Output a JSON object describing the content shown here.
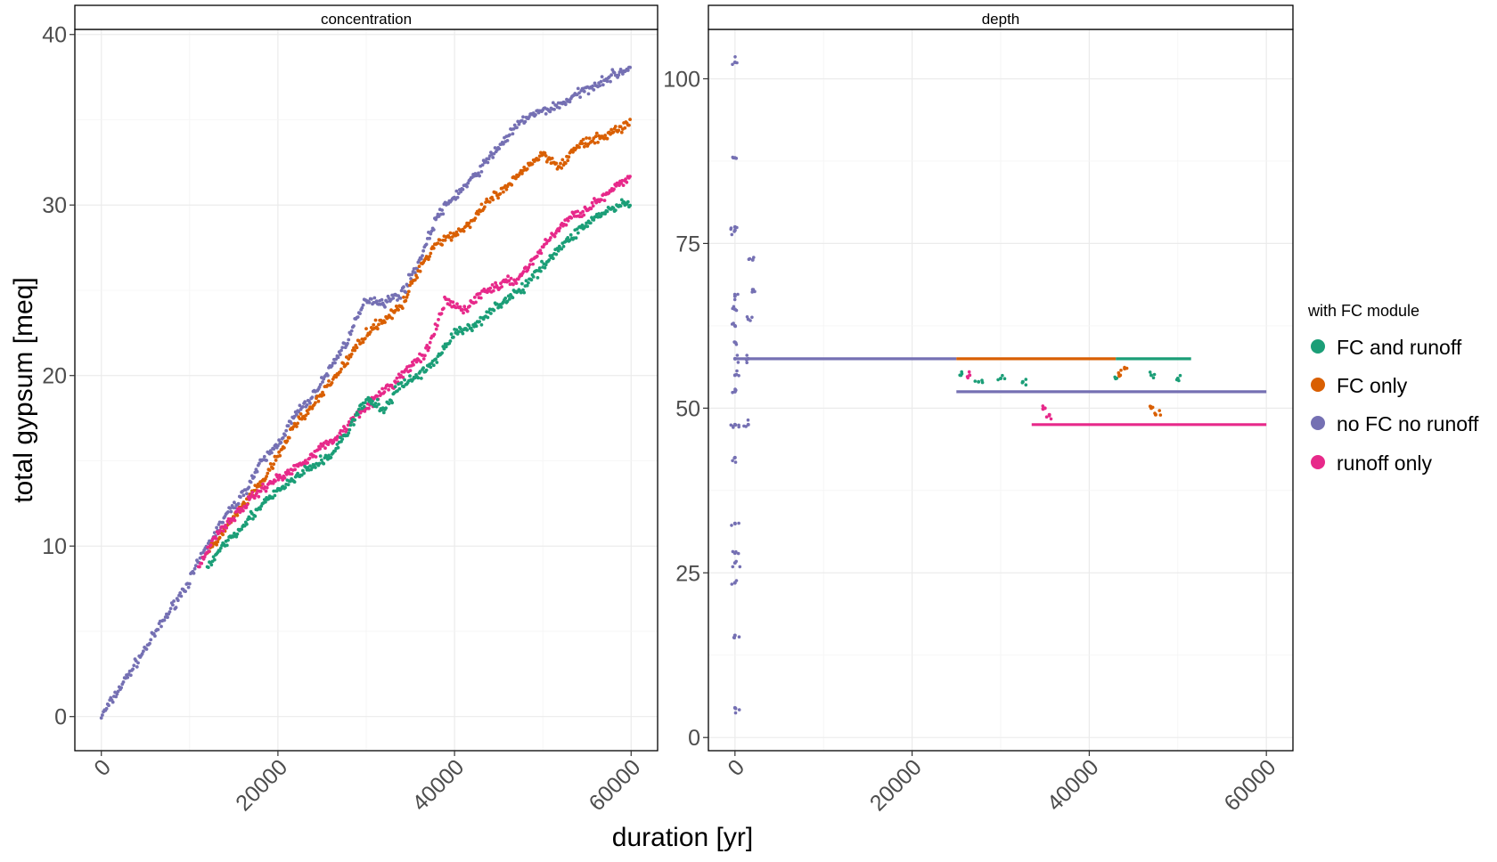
{
  "chart_data": {
    "type": "scatter",
    "title": "",
    "xlabel": "duration [yr]",
    "ylabel": "total gypsum [meq]",
    "grid": true,
    "legend": {
      "title": "with FC module",
      "position": "right"
    },
    "series_colors": {
      "FC and runoff": "#1b9e77",
      "FC only": "#d95f02",
      "no FC no runoff": "#7570b3",
      "runoff only": "#e7298a"
    },
    "series_names": [
      "FC and runoff",
      "FC only",
      "no FC no runoff",
      "runoff only"
    ],
    "panels": [
      {
        "name": "concentration",
        "xlim": [
          -3000,
          63000
        ],
        "ylim": [
          -2,
          40.3
        ],
        "x_ticks": [
          0,
          20000,
          40000,
          60000
        ],
        "y_ticks": [
          0,
          10,
          20,
          30,
          40
        ],
        "series": [
          {
            "name": "no FC no runoff",
            "x": [
              0,
              5000,
              10000,
              12000,
              14000,
              16000,
              18000,
              20000,
              22000,
              24000,
              26000,
              28000,
              30000,
              32000,
              34000,
              36000,
              38000,
              40000,
              42000,
              44000,
              46000,
              48000,
              50000,
              52000,
              54000,
              56000,
              58000,
              60000
            ],
            "y": [
              0,
              4,
              8,
              10,
              11.7,
              13,
              14.8,
              16,
              17.7,
              18.8,
              20.5,
              22.2,
              24.5,
              24.3,
              24.8,
              26.7,
              29.3,
              30.5,
              31.5,
              32.8,
              34,
              35.1,
              35.5,
              35.9,
              36.5,
              37.1,
              37.6,
              38.1
            ]
          },
          {
            "name": "FC only",
            "x": [
              12000,
              14000,
              16000,
              18000,
              20000,
              22000,
              24000,
              26000,
              28000,
              30000,
              32000,
              34000,
              36000,
              38000,
              40000,
              42000,
              44000,
              46000,
              48000,
              50000,
              52000,
              54000,
              56000,
              58000,
              60000
            ],
            "y": [
              9.5,
              11,
              12.3,
              13.6,
              15.2,
              17.2,
              18.2,
              19.6,
              21,
              22.5,
              23.3,
              24,
              26.3,
              27.8,
              28.3,
              29,
              30.3,
              31,
              32.2,
              33,
              32.3,
              33.5,
              33.8,
              34.3,
              34.9
            ]
          },
          {
            "name": "runoff only",
            "x": [
              11000,
              13000,
              15000,
              17000,
              19000,
              21000,
              23000,
              25000,
              27000,
              29000,
              31000,
              33000,
              35000,
              37000,
              39000,
              41000,
              43000,
              45000,
              47000,
              49000,
              51000,
              53000,
              55000,
              57000,
              59000,
              60000
            ],
            "y": [
              8.7,
              10.7,
              11.7,
              12.8,
              13.7,
              14.2,
              15,
              15.8,
              16.5,
              17.8,
              18.6,
              19.5,
              20.5,
              21.5,
              24.4,
              23.8,
              24.8,
              25.3,
              25.6,
              26.8,
              28.2,
              29.2,
              29.8,
              30.5,
              31.3,
              31.7
            ]
          },
          {
            "name": "FC and runoff",
            "x": [
              12000,
              14000,
              16000,
              18000,
              20000,
              22000,
              24000,
              26000,
              28000,
              30000,
              32000,
              34000,
              36000,
              38000,
              40000,
              42000,
              44000,
              46000,
              48000,
              50000,
              52000,
              54000,
              56000,
              58000,
              60000
            ],
            "y": [
              8.8,
              10.2,
              11.2,
              12.3,
              13.2,
              14,
              14.7,
              15.3,
              16.8,
              18.6,
              18,
              19.5,
              20,
              21,
              22.5,
              22.8,
              23.8,
              24.5,
              25.2,
              26.5,
              27.5,
              28.5,
              29.3,
              29.8,
              30.2
            ]
          }
        ]
      },
      {
        "name": "depth",
        "xlim": [
          -3000,
          63000
        ],
        "ylim": [
          -2,
          107.5
        ],
        "x_ticks": [
          0,
          20000,
          40000,
          60000
        ],
        "y_ticks": [
          0,
          25,
          50,
          75,
          100
        ],
        "segments": [
          {
            "series": "no FC no runoff",
            "x": [
              0,
              25000
            ],
            "y": 57.5
          },
          {
            "series": "FC only",
            "x": [
              25000,
              43000
            ],
            "y": 57.5
          },
          {
            "series": "FC and runoff",
            "x": [
              43000,
              51500
            ],
            "y": 57.5
          },
          {
            "series": "no FC no runoff",
            "x": [
              25000,
              60000
            ],
            "y": 52.5
          },
          {
            "series": "runoff only",
            "x": [
              33500,
              60000
            ],
            "y": 47.5
          }
        ],
        "scatter": [
          {
            "series": "no FC no runoff",
            "x": [
              0,
              0,
              0,
              0,
              0,
              0,
              0,
              0,
              0,
              0,
              0,
              0,
              0,
              0,
              0,
              0,
              0,
              0,
              0,
              0,
              1500,
              1500,
              1500,
              2000,
              2000
            ],
            "y": [
              4.5,
              15.5,
              23.5,
              26.5,
              28,
              32.5,
              42.5,
              47.5,
              52.5,
              55,
              57.5,
              60,
              62.5,
              65,
              67,
              77.5,
              77,
              88,
              102.5,
              47.5,
              47.5,
              57.5,
              63.5,
              68,
              72.5
            ]
          },
          {
            "series": "FC and runoff",
            "x": [
              25500,
              27500,
              30000,
              32500,
              43000,
              47000,
              50000
            ],
            "y": [
              55,
              54,
              54.5,
              54,
              54.5,
              55,
              54.5
            ]
          },
          {
            "series": "runoff only",
            "x": [
              26500,
              35000,
              35500
            ],
            "y": [
              55,
              50,
              49
            ]
          },
          {
            "series": "FC only",
            "x": [
              43500,
              44000,
              47000,
              47500
            ],
            "y": [
              55,
              56,
              50,
              49
            ]
          }
        ]
      }
    ]
  }
}
